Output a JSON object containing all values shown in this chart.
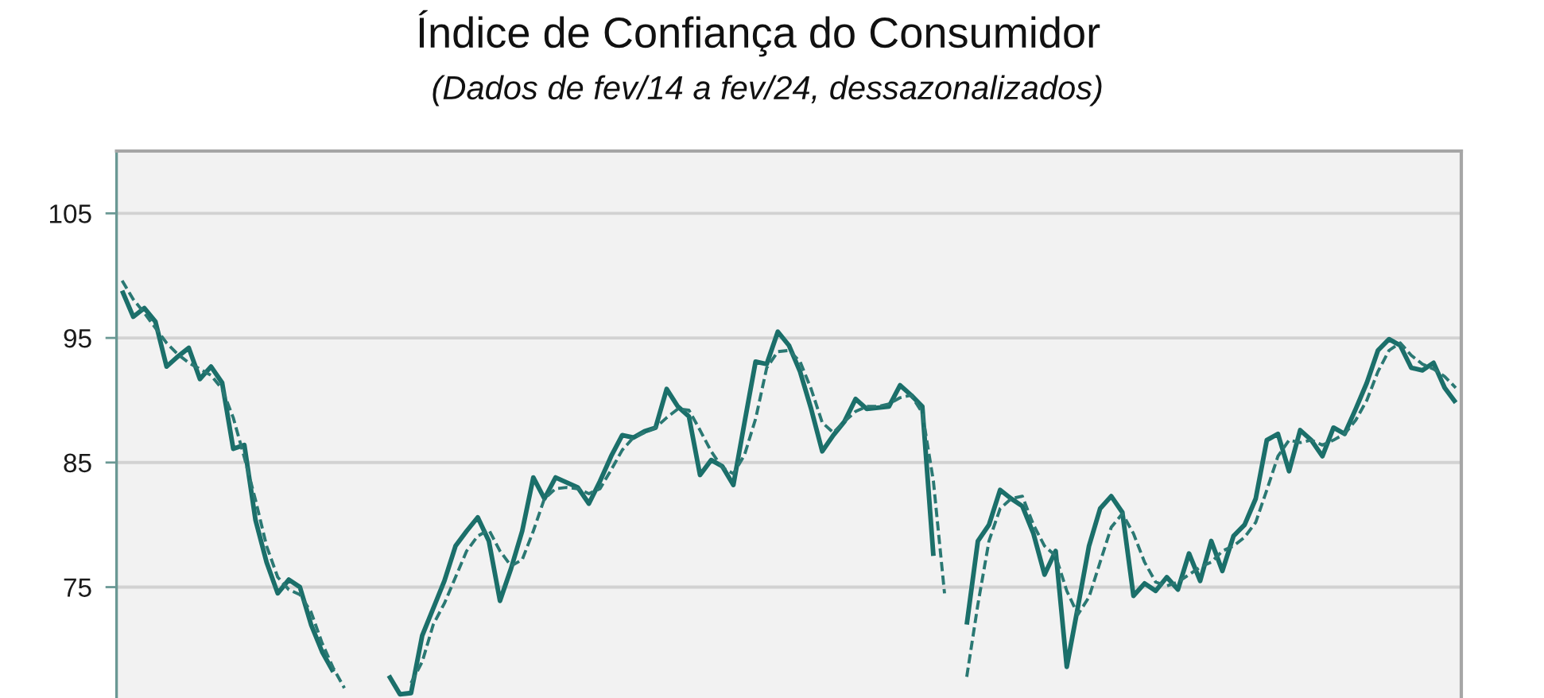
{
  "chart_data": {
    "type": "line",
    "title": "Índice de Confiança do Consumidor",
    "subtitle": "(Dados de fev/14 a fev/24, dessazonalizados)",
    "categories": [
      null,
      null,
      null,
      null,
      null,
      null,
      null,
      null,
      null,
      null,
      null,
      null,
      null,
      null,
      null,
      null,
      null,
      null,
      null,
      null,
      null,
      null,
      null,
      null,
      null,
      null,
      null,
      null,
      null,
      null,
      null,
      null,
      null,
      null,
      null,
      null,
      null,
      null,
      null,
      null,
      null,
      null,
      null,
      null,
      null,
      null,
      null,
      null,
      null,
      null,
      null,
      null,
      null,
      null,
      null,
      null,
      null,
      null,
      null,
      null,
      null,
      null,
      null,
      null,
      null,
      null,
      null,
      null,
      null,
      null,
      null,
      null,
      null,
      null,
      null,
      null,
      null,
      null,
      null,
      null,
      null,
      null,
      null,
      null,
      null,
      null,
      null,
      null,
      null,
      null,
      null,
      null,
      null,
      null,
      null,
      null,
      null,
      null,
      null,
      null,
      null,
      null,
      null,
      null,
      null,
      null,
      null,
      null,
      null,
      null,
      null,
      null,
      null,
      null,
      null,
      null,
      null,
      null,
      null,
      null,
      null
    ],
    "series": [
      {
        "color": "#1b6f6a",
        "line_style": "solid",
        "values": [
          98.8,
          96.7,
          97.4,
          96.3,
          92.7,
          93.5,
          94.2,
          91.7,
          92.7,
          91.4,
          86.1,
          86.4,
          80.4,
          77.0,
          74.5,
          75.6,
          75.0,
          72.0,
          69.8,
          68.2,
          null,
          null,
          null,
          null,
          67.9,
          66.4,
          66.5,
          71.1,
          73.3,
          75.5,
          78.3,
          79.5,
          80.6,
          78.7,
          73.9,
          76.5,
          79.5,
          83.8,
          82.1,
          83.8,
          83.4,
          83.0,
          81.7,
          83.5,
          85.5,
          87.2,
          87.0,
          87.5,
          87.8,
          90.9,
          89.5,
          88.7,
          84.0,
          85.2,
          84.7,
          83.2,
          88.2,
          93.1,
          92.9,
          95.5,
          94.4,
          92.3,
          89.3,
          85.9,
          87.2,
          88.3,
          90.1,
          89.3,
          89.4,
          89.5,
          91.2,
          90.4,
          89.5,
          77.5,
          null,
          null,
          72.0,
          78.7,
          80.0,
          82.8,
          82.1,
          81.5,
          79.3,
          76.0,
          77.9,
          68.6,
          73.4,
          78.3,
          81.3,
          82.3,
          81.0,
          74.3,
          75.3,
          74.7,
          75.8,
          74.8,
          77.7,
          75.5,
          78.7,
          76.3,
          79.1,
          80.0,
          82.1,
          86.8,
          87.3,
          84.3,
          87.6,
          86.8,
          85.5,
          87.8,
          87.3,
          89.3,
          91.4,
          94.0,
          94.9,
          94.4,
          92.6,
          92.4,
          93.0,
          91.0,
          89.8
        ]
      },
      {
        "color": "#2a7873",
        "line_style": "dashed",
        "values": [
          99.6,
          98.1,
          97.0,
          95.8,
          94.6,
          93.7,
          93.0,
          92.5,
          92.0,
          90.9,
          88.6,
          85.4,
          82.0,
          78.3,
          75.8,
          74.8,
          74.4,
          73.0,
          70.5,
          68.5,
          66.9,
          null,
          null,
          null,
          null,
          null,
          67.3,
          69.0,
          72.0,
          73.7,
          75.8,
          77.9,
          79.1,
          79.6,
          77.9,
          76.7,
          77.2,
          79.5,
          82.1,
          82.9,
          83.0,
          82.9,
          82.5,
          82.9,
          84.4,
          86.0,
          87.0,
          87.4,
          87.8,
          88.6,
          89.3,
          89.2,
          87.6,
          85.9,
          84.6,
          84.1,
          85.6,
          88.5,
          92.6,
          93.9,
          94.0,
          93.1,
          90.9,
          88.2,
          87.4,
          88.3,
          89.1,
          89.5,
          89.5,
          89.7,
          90.2,
          90.4,
          89.0,
          83.5,
          74.5,
          null,
          67.8,
          73.6,
          78.7,
          81.3,
          82.1,
          82.3,
          80.0,
          78.3,
          77.5,
          74.7,
          72.8,
          74.2,
          77.0,
          79.8,
          80.9,
          79.3,
          77.0,
          75.4,
          75.1,
          75.4,
          76.0,
          76.6,
          77.0,
          77.9,
          78.3,
          79.0,
          80.2,
          82.8,
          85.5,
          86.8,
          86.6,
          86.8,
          86.4,
          86.8,
          87.3,
          88.4,
          90.0,
          92.3,
          94.0,
          94.6,
          93.6,
          92.9,
          92.5,
          91.9,
          91.0
        ]
      }
    ],
    "ylim": [
      66.1,
      110
    ],
    "yticks": [
      75,
      85,
      95,
      105
    ],
    "grid": "y",
    "tick_labels": "y"
  }
}
